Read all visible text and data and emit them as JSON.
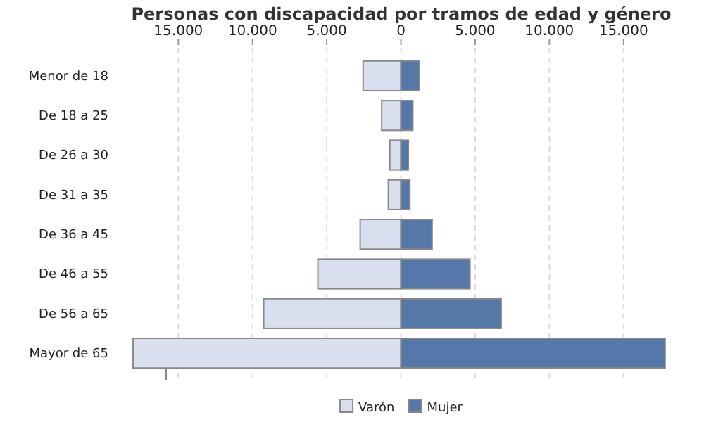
{
  "chart_data": {
    "type": "bar",
    "title": "Personas con discapacidad por tramos de edad y género",
    "orientation": "horizontal",
    "stacked": true,
    "categories": [
      "Menor de 18",
      "De 18 a 25",
      "De 26 a 30",
      "De 31 a 35",
      "De 36 a 45",
      "De 46 a 55",
      "De 56 a 65",
      "Mayor de 65"
    ],
    "series": [
      {
        "name": "Varón",
        "color": "#dadfef",
        "values": [
          -2550,
          -1300,
          -750,
          -850,
          -2750,
          -5600,
          -9250,
          -18050
        ]
      },
      {
        "name": "Mujer",
        "color": "#5578a8",
        "values": [
          1250,
          800,
          500,
          600,
          2100,
          4650,
          6750,
          17800
        ]
      }
    ],
    "xlim": [
      -18100,
      18000
    ],
    "xticks": [
      {
        "value": -15000,
        "label": "15.000"
      },
      {
        "value": -10000,
        "label": "10.000"
      },
      {
        "value": -5000,
        "label": "5.000"
      },
      0,
      {
        "value": 5000,
        "label": "5.000"
      },
      {
        "value": 10000,
        "label": "10.000"
      },
      {
        "value": 15000,
        "label": "15.000"
      }
    ],
    "grid": "x",
    "legend": "bottom"
  }
}
